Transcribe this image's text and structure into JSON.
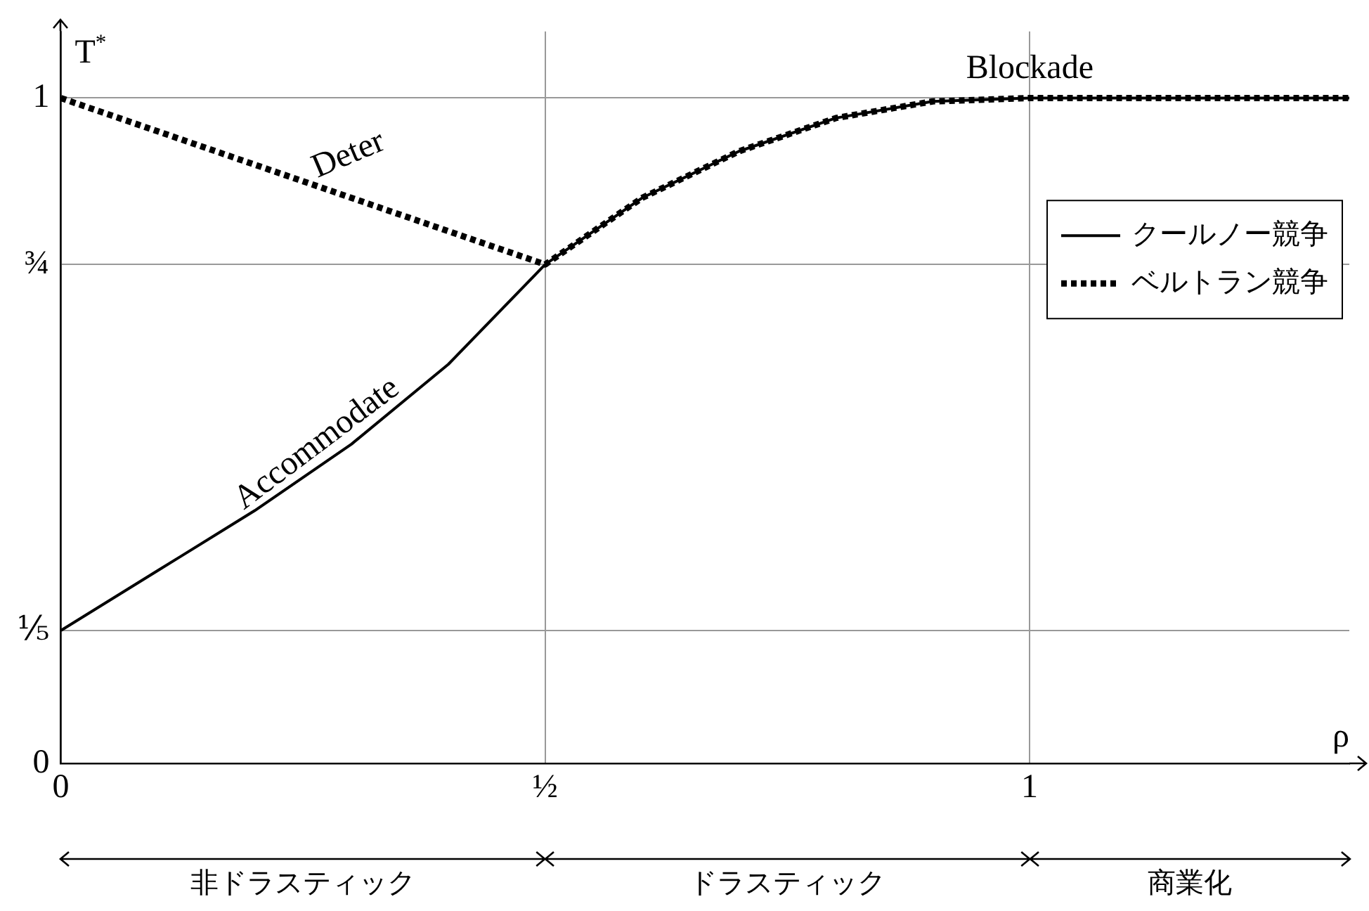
{
  "chart_data": {
    "type": "line",
    "xlabel": "ρ",
    "ylabel": "T$^{*}$",
    "x": [
      0,
      0.1,
      0.2,
      0.3,
      0.4,
      0.5,
      0.6,
      0.7,
      0.8,
      0.9,
      1,
      1.33
    ],
    "series": [
      {
        "name": "クールノー競争",
        "color": "#000000",
        "line_style": "solid",
        "values": [
          0.2,
          0.29,
          0.38,
          0.48,
          0.6,
          0.75,
          0.85,
          0.92,
          0.97,
          0.995,
          1,
          1
        ]
      },
      {
        "name": "ベルトラン競争",
        "color": "#000000",
        "line_style": "dotted",
        "values": [
          1,
          0.95,
          0.9,
          0.85,
          0.8,
          0.75,
          0.85,
          0.92,
          0.97,
          0.995,
          1,
          1
        ]
      }
    ],
    "xlim": [
      0,
      1.33
    ],
    "ylim": [
      0,
      1.1
    ],
    "xticks": [
      0,
      {
        "value": 0.5,
        "label": "½"
      },
      1
    ],
    "yticks": [
      0,
      {
        "value": 0.2,
        "label": "⅕"
      },
      {
        "value": 0.75,
        "label": "¾"
      },
      1
    ],
    "grid": true,
    "legend": "right",
    "marker": "none",
    "annotations": [
      "Deter",
      "Accommodate",
      "Blockade",
      "非ドラスティック",
      "ドラスティック",
      "商業化"
    ]
  }
}
